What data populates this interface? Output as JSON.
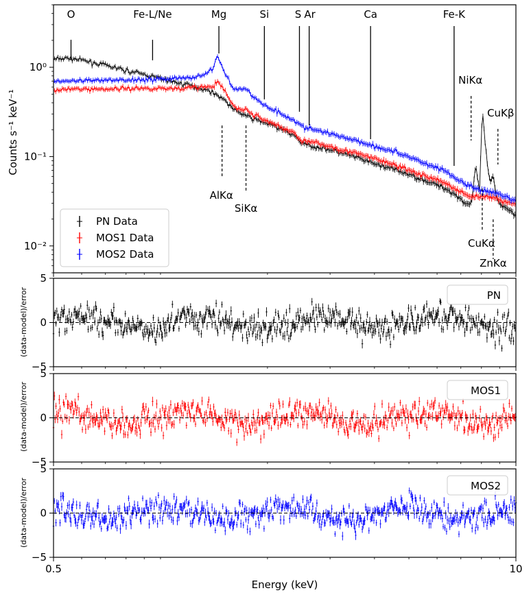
{
  "chart_data": {
    "type": "scatter",
    "xlabel": "Energy (keV)",
    "xscale": "log",
    "xlim": [
      0.5,
      10
    ],
    "x_ticks": [
      {
        "value": 0.5,
        "label": "0.5"
      },
      {
        "value": 10,
        "label": "10"
      }
    ],
    "panels": [
      {
        "id": "spectrum",
        "ylabel": "Counts s⁻¹ keV⁻¹",
        "yscale": "log",
        "ylim": [
          0.005,
          5.0
        ],
        "y_ticks": [
          {
            "value": 1.0,
            "label": "10⁰"
          },
          {
            "value": 0.1,
            "label": "10⁻¹"
          },
          {
            "value": 0.01,
            "label": "10⁻²"
          }
        ],
        "legend": {
          "placement": "lower-left",
          "entries": [
            "PN Data",
            "MOS1 Data",
            "MOS2 Data"
          ]
        },
        "series": [
          {
            "name": "PN Data",
            "color": "#000000",
            "points": [
              [
                0.5,
                1.22
              ],
              [
                0.55,
                1.27
              ],
              [
                0.6,
                1.2
              ],
              [
                0.7,
                1.05
              ],
              [
                0.8,
                0.92
              ],
              [
                0.9,
                0.83
              ],
              [
                1.0,
                0.75
              ],
              [
                1.1,
                0.68
              ],
              [
                1.2,
                0.63
              ],
              [
                1.3,
                0.58
              ],
              [
                1.4,
                0.53
              ],
              [
                1.45,
                0.48
              ],
              [
                1.5,
                0.45
              ],
              [
                1.6,
                0.34
              ],
              [
                1.7,
                0.3
              ],
              [
                1.8,
                0.27
              ],
              [
                2.0,
                0.235
              ],
              [
                2.2,
                0.2
              ],
              [
                2.4,
                0.17
              ],
              [
                2.5,
                0.14
              ],
              [
                2.7,
                0.13
              ],
              [
                3.0,
                0.12
              ],
              [
                3.5,
                0.1
              ],
              [
                4.0,
                0.083
              ],
              [
                4.5,
                0.073
              ],
              [
                5.0,
                0.063
              ],
              [
                5.5,
                0.055
              ],
              [
                6.0,
                0.048
              ],
              [
                6.4,
                0.043
              ],
              [
                6.8,
                0.037
              ],
              [
                7.2,
                0.03
              ],
              [
                7.5,
                0.03
              ],
              [
                7.7,
                0.078
              ],
              [
                7.9,
                0.04
              ],
              [
                8.05,
                0.34
              ],
              [
                8.2,
                0.13
              ],
              [
                8.45,
                0.05
              ],
              [
                8.64,
                0.06
              ],
              [
                8.8,
                0.035
              ],
              [
                9.0,
                0.03
              ],
              [
                9.5,
                0.026
              ],
              [
                10.0,
                0.022
              ]
            ]
          },
          {
            "name": "MOS1 Data",
            "color": "#ff0000",
            "points": [
              [
                0.5,
                0.56
              ],
              [
                0.6,
                0.57
              ],
              [
                0.7,
                0.57
              ],
              [
                0.8,
                0.58
              ],
              [
                0.9,
                0.58
              ],
              [
                1.0,
                0.58
              ],
              [
                1.1,
                0.58
              ],
              [
                1.2,
                0.59
              ],
              [
                1.3,
                0.6
              ],
              [
                1.4,
                0.6
              ],
              [
                1.45,
                0.68
              ],
              [
                1.5,
                0.58
              ],
              [
                1.6,
                0.37
              ],
              [
                1.7,
                0.33
              ],
              [
                1.75,
                0.34
              ],
              [
                1.8,
                0.3
              ],
              [
                2.0,
                0.25
              ],
              [
                2.2,
                0.21
              ],
              [
                2.4,
                0.18
              ],
              [
                2.5,
                0.15
              ],
              [
                2.7,
                0.143
              ],
              [
                3.0,
                0.13
              ],
              [
                3.5,
                0.11
              ],
              [
                4.0,
                0.095
              ],
              [
                4.5,
                0.082
              ],
              [
                5.0,
                0.07
              ],
              [
                5.5,
                0.061
              ],
              [
                6.0,
                0.055
              ],
              [
                6.4,
                0.05
              ],
              [
                6.8,
                0.042
              ],
              [
                7.2,
                0.038
              ],
              [
                7.5,
                0.036
              ],
              [
                8.0,
                0.036
              ],
              [
                8.5,
                0.035
              ],
              [
                9.0,
                0.033
              ],
              [
                9.5,
                0.031
              ],
              [
                10.0,
                0.029
              ]
            ]
          },
          {
            "name": "MOS2 Data",
            "color": "#0000ff",
            "points": [
              [
                0.5,
                0.7
              ],
              [
                0.6,
                0.7
              ],
              [
                0.7,
                0.71
              ],
              [
                0.8,
                0.72
              ],
              [
                0.9,
                0.73
              ],
              [
                1.0,
                0.74
              ],
              [
                1.1,
                0.75
              ],
              [
                1.2,
                0.76
              ],
              [
                1.3,
                0.8
              ],
              [
                1.4,
                0.95
              ],
              [
                1.45,
                1.32
              ],
              [
                1.5,
                0.95
              ],
              [
                1.6,
                0.58
              ],
              [
                1.7,
                0.57
              ],
              [
                1.75,
                0.58
              ],
              [
                1.8,
                0.48
              ],
              [
                2.0,
                0.36
              ],
              [
                2.2,
                0.3
              ],
              [
                2.4,
                0.25
              ],
              [
                2.5,
                0.215
              ],
              [
                2.7,
                0.2
              ],
              [
                3.0,
                0.18
              ],
              [
                3.5,
                0.155
              ],
              [
                4.0,
                0.13
              ],
              [
                4.5,
                0.115
              ],
              [
                5.0,
                0.1
              ],
              [
                5.5,
                0.085
              ],
              [
                6.0,
                0.075
              ],
              [
                6.4,
                0.068
              ],
              [
                6.8,
                0.055
              ],
              [
                7.2,
                0.05
              ],
              [
                7.5,
                0.046
              ],
              [
                8.0,
                0.042
              ],
              [
                8.5,
                0.04
              ],
              [
                9.0,
                0.037
              ],
              [
                9.5,
                0.034
              ],
              [
                10.0,
                0.032
              ]
            ]
          }
        ],
        "line_labels": [
          {
            "label": "O",
            "energy": 0.56
          },
          {
            "label": "Fe-L/Ne",
            "energy": 0.95
          },
          {
            "label": "Mg",
            "energy": 1.46
          },
          {
            "label": "Si",
            "energy": 1.96
          },
          {
            "label": "S",
            "energy": 2.46
          },
          {
            "label": "Ar",
            "energy": 2.62
          },
          {
            "label": "Ca",
            "energy": 3.9
          },
          {
            "label": "Fe-K",
            "energy": 6.7
          }
        ],
        "instrumental_lines": [
          {
            "label": "AlKα",
            "energy": 1.49
          },
          {
            "label": "SiKα",
            "energy": 1.74
          },
          {
            "label": "NiKα",
            "energy": 7.48
          },
          {
            "label": "CuKβ",
            "energy": 8.9
          },
          {
            "label": "CuKα",
            "energy": 8.04
          },
          {
            "label": "ZnKα",
            "energy": 8.63
          }
        ]
      },
      {
        "id": "resid-pn",
        "label": "PN",
        "color": "#000000",
        "ylabel": "(data-model)/error",
        "ylim": [
          -5,
          5
        ],
        "y_ticks": [
          {
            "value": 5,
            "label": "5"
          },
          {
            "value": 0,
            "label": "0"
          },
          {
            "value": -5,
            "label": "−5"
          }
        ]
      },
      {
        "id": "resid-mos1",
        "label": "MOS1",
        "color": "#ff0000",
        "ylabel": "(data-model)/error",
        "ylim": [
          -5,
          5
        ],
        "y_ticks": [
          {
            "value": 5,
            "label": "5"
          },
          {
            "value": 0,
            "label": "0"
          },
          {
            "value": -5,
            "label": "−5"
          }
        ]
      },
      {
        "id": "resid-mos2",
        "label": "MOS2",
        "color": "#0000ff",
        "ylabel": "(data-model)/error",
        "ylim": [
          -5,
          5
        ],
        "y_ticks": [
          {
            "value": 5,
            "label": "5"
          },
          {
            "value": 0,
            "label": "0"
          },
          {
            "value": -5,
            "label": "−5"
          }
        ]
      }
    ]
  }
}
